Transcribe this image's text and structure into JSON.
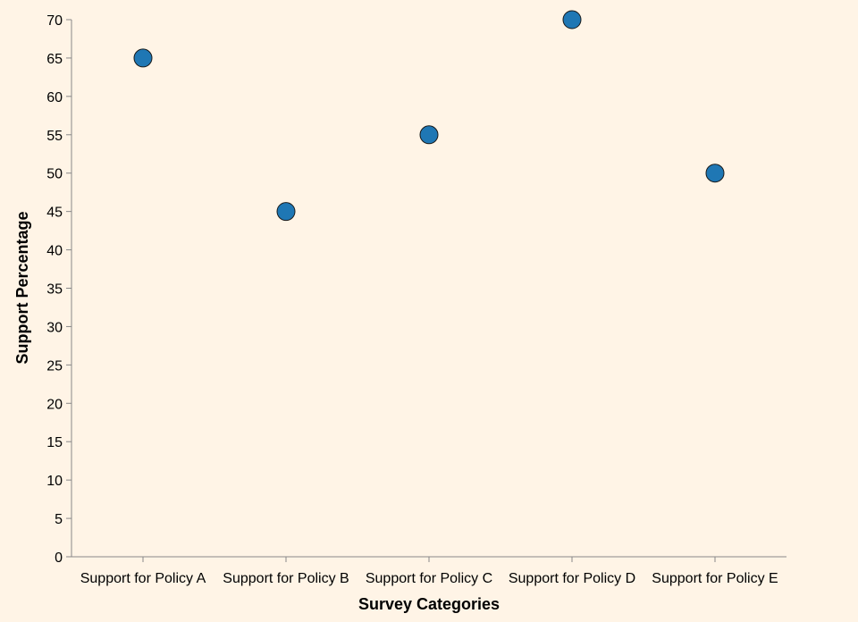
{
  "chart_data": {
    "type": "scatter",
    "title": "",
    "xlabel": "Survey Categories",
    "ylabel": "Support Percentage",
    "categories": [
      "Support for Policy A",
      "Support for Policy B",
      "Support for Policy C",
      "Support for Policy D",
      "Support for Policy E"
    ],
    "values": [
      65,
      45,
      55,
      70,
      50
    ],
    "ylim": [
      0,
      70
    ],
    "yticks": [
      0,
      5,
      10,
      15,
      20,
      25,
      30,
      35,
      40,
      45,
      50,
      55,
      60,
      65,
      70
    ],
    "grid": false,
    "legend": "none",
    "colors": {
      "point": "#1f77b4",
      "background": "#fff4e6",
      "axis": "#888888"
    }
  }
}
